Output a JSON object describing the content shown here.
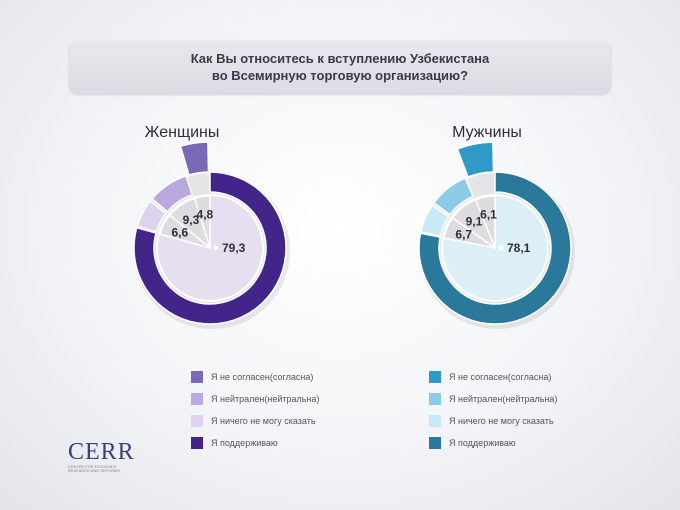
{
  "title": {
    "line1": "Как Вы относитесь к вступлению Узбекистана",
    "line2": "во Всемирную торговую организацию?"
  },
  "logo": {
    "mark": "CERR",
    "subtitle_line1": "CENTER FOR ECONOMIC",
    "subtitle_line2": "RESEARCH AND REFORMS"
  },
  "chart_data": [
    {
      "type": "pie",
      "title": "Женщины",
      "categories": [
        "Я не согласен(согласна)",
        "Я нейтрален(нейтральна)",
        "Я ничего не могу сказать",
        "Я поддерживаю"
      ],
      "values": [
        4.8,
        9.3,
        6.6,
        79.3
      ],
      "value_labels": [
        "4,8",
        "9,3",
        "6,6",
        "79,3"
      ],
      "colors": [
        "#7b68b7",
        "#b9a9df",
        "#ddd2f0",
        "#432489"
      ],
      "center_fill": "#e5dff0",
      "legend_position": "bottom"
    },
    {
      "type": "pie",
      "title": "Мужчины",
      "categories": [
        "Я не согласен(согласна)",
        "Я нейтрален(нейтральна)",
        "Я ничего не могу сказать",
        "Я поддерживаю"
      ],
      "values": [
        6.1,
        9.1,
        6.7,
        78.1
      ],
      "value_labels": [
        "6,1",
        "9,1",
        "6,7",
        "78,1"
      ],
      "colors": [
        "#2f99c8",
        "#8bcbe8",
        "#c8e9f7",
        "#2a789a"
      ],
      "center_fill": "#dceef6",
      "legend_position": "bottom"
    }
  ]
}
